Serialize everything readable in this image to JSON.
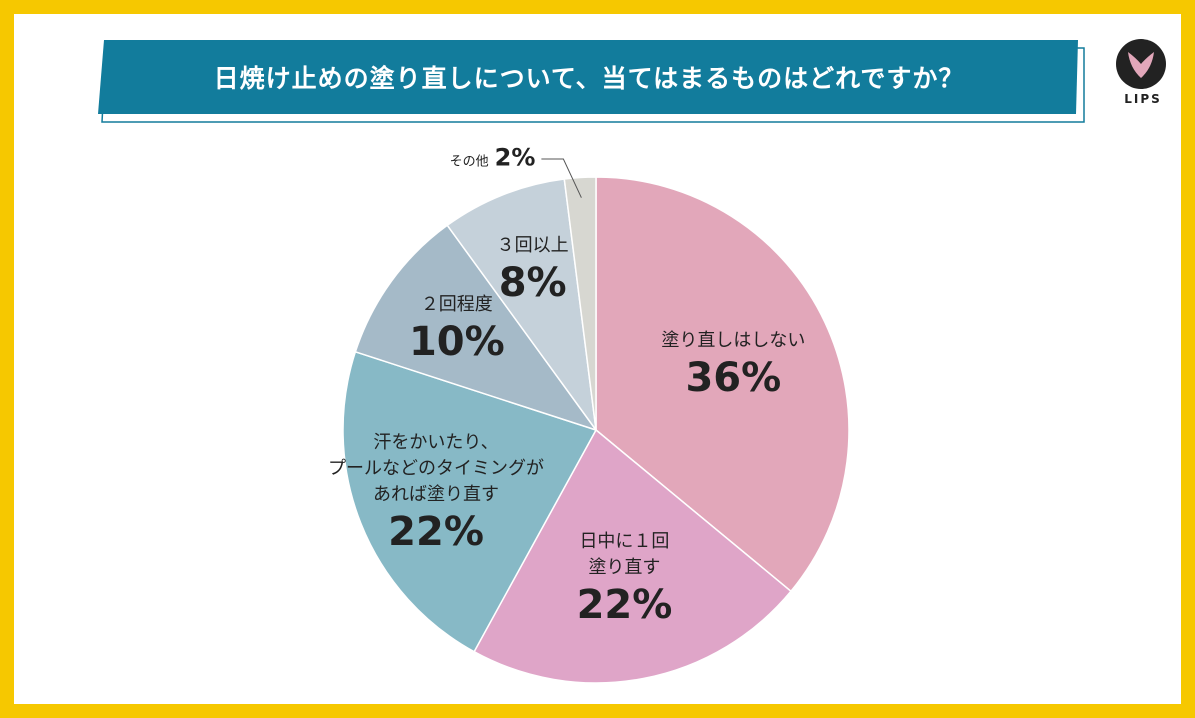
{
  "chart_data": {
    "type": "pie",
    "title": "日焼け止めの塗り直しについて、当てはまるものはどれですか？",
    "brand": "LIPS",
    "categories": [
      "塗り直しはしない",
      "日中に１回\n塗り直す",
      "汗をかいたり、\nプールなどのタイミングが\nあれば塗り直す",
      "２回程度",
      "３回以上",
      "その他"
    ],
    "values": [
      36,
      22,
      22,
      10,
      8,
      2
    ],
    "value_labels": [
      "36%",
      "22%",
      "22%",
      "10%",
      "8%",
      "2%"
    ],
    "colors": [
      "#e2a7ba",
      "#dfa5c8",
      "#87b9c6",
      "#a5bac8",
      "#c5d1da",
      "#d7d7d1"
    ]
  }
}
